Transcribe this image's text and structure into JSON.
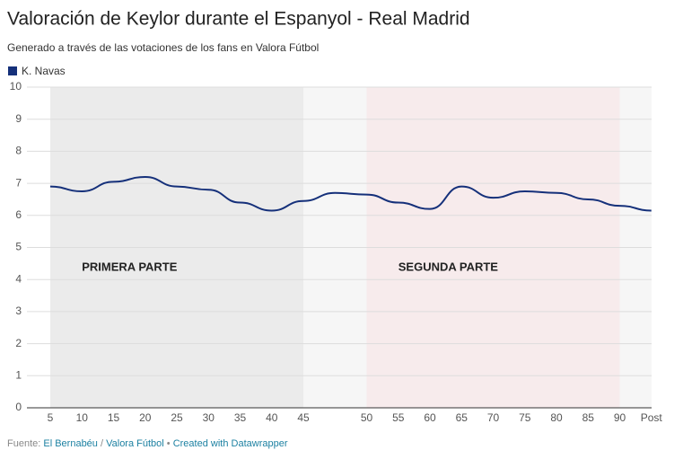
{
  "chart_data": {
    "type": "line",
    "title": "Valoración de Keylor durante el Espanyol - Real Madrid",
    "subtitle": "Generado a través de las votaciones de los fans en Valora Fútbol",
    "categories": [
      "5",
      "10",
      "15",
      "20",
      "25",
      "30",
      "35",
      "40",
      "45",
      null,
      "50",
      "55",
      "60",
      "65",
      "70",
      "75",
      "80",
      "85",
      "90",
      "Post"
    ],
    "series": [
      {
        "name": "K. Navas",
        "color": "#15307a",
        "values": [
          6.9,
          6.75,
          7.05,
          7.2,
          6.9,
          6.8,
          6.4,
          6.15,
          6.45,
          6.7,
          6.65,
          6.4,
          6.2,
          6.9,
          6.55,
          6.75,
          6.7,
          6.5,
          6.3,
          6.15
        ]
      }
    ],
    "ylim": [
      0,
      10
    ],
    "yticks": [
      0,
      1,
      2,
      3,
      4,
      5,
      6,
      7,
      8,
      9,
      10
    ],
    "grid": true,
    "annotations": [
      "PRIMERA PARTE",
      "SEGUNDA PARTE"
    ],
    "footer": {
      "prefix": "Fuente:",
      "sources": [
        "El Bernabéu",
        "Valora Fútbol"
      ],
      "separator": "/",
      "bullet": "•",
      "credit": "Created with Datawrapper"
    }
  }
}
